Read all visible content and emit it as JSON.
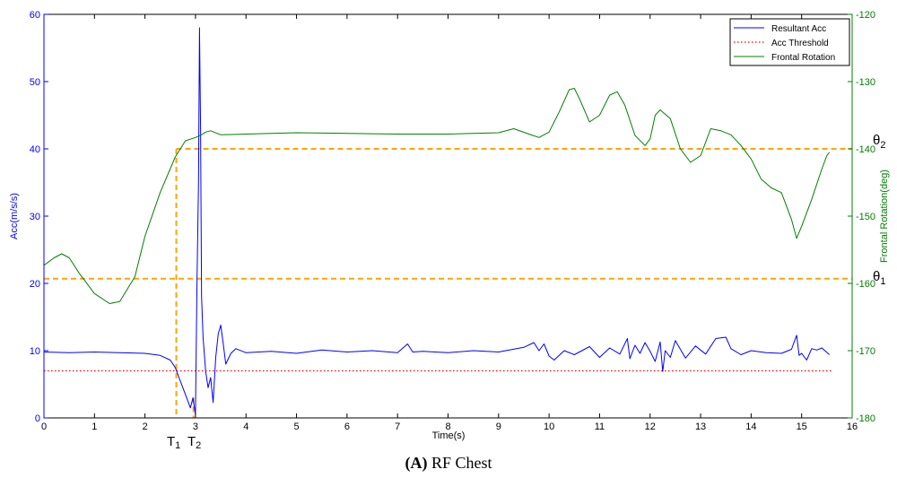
{
  "figure": {
    "caption_bold": "(A)",
    "caption_text": " RF Chest"
  },
  "chart_data": {
    "type": "line",
    "xlabel": "Time(s)",
    "ylabel_left": "Acc(m/s/s)",
    "ylabel_right": "Frontal Rotation(deg)",
    "xlim": [
      0,
      16
    ],
    "ylim_left": [
      0,
      60
    ],
    "ylim_right": [
      -180,
      -120
    ],
    "xticks": [
      0,
      1,
      2,
      3,
      4,
      5,
      6,
      7,
      8,
      9,
      10,
      11,
      12,
      13,
      14,
      15,
      16
    ],
    "yticks_left": [
      0,
      10,
      20,
      30,
      40,
      50,
      60
    ],
    "yticks_right": [
      -180,
      -170,
      -160,
      -150,
      -140,
      -130,
      -120
    ],
    "grid": false,
    "legend_position": "top-right",
    "colors": {
      "acc": "#0000ff",
      "threshold": "#ff0000",
      "rotation": "#008000",
      "markers": "#ffa500",
      "left_axis": "#0000ff",
      "right_axis": "#008000"
    },
    "series": [
      {
        "name": "Resultant Acc",
        "axis": "left",
        "style": "solid",
        "x": [
          0,
          0.5,
          1.0,
          1.5,
          2.0,
          2.3,
          2.5,
          2.6,
          2.7,
          2.8,
          2.9,
          2.95,
          3.0,
          3.03,
          3.06,
          3.08,
          3.1,
          3.12,
          3.15,
          3.2,
          3.25,
          3.3,
          3.35,
          3.4,
          3.45,
          3.5,
          3.55,
          3.6,
          3.7,
          3.8,
          4.0,
          4.5,
          5.0,
          5.5,
          6.0,
          6.5,
          7.0,
          7.2,
          7.3,
          7.5,
          8.0,
          8.5,
          9.0,
          9.5,
          9.7,
          9.8,
          9.9,
          10.0,
          10.1,
          10.3,
          10.5,
          10.8,
          11.0,
          11.2,
          11.4,
          11.55,
          11.6,
          11.7,
          11.8,
          11.9,
          12.0,
          12.1,
          12.2,
          12.25,
          12.3,
          12.4,
          12.5,
          12.7,
          12.9,
          13.1,
          13.3,
          13.5,
          13.6,
          13.8,
          14.0,
          14.3,
          14.6,
          14.8,
          14.9,
          14.95,
          15.0,
          15.1,
          15.2,
          15.3,
          15.4,
          15.55
        ],
        "y": [
          9.8,
          9.7,
          9.8,
          9.7,
          9.6,
          9.3,
          8.6,
          7.5,
          5.5,
          3.5,
          1.5,
          3.0,
          0.5,
          20.0,
          35.0,
          58.0,
          43.0,
          18.0,
          12.0,
          7.0,
          4.5,
          6.0,
          2.3,
          9.0,
          12.5,
          13.8,
          11.0,
          8.0,
          9.6,
          10.3,
          9.7,
          9.9,
          9.6,
          10.1,
          9.8,
          10.0,
          9.7,
          11.0,
          9.8,
          9.9,
          9.7,
          10.0,
          9.8,
          10.5,
          11.2,
          10.0,
          11.0,
          9.2,
          8.6,
          10.0,
          9.4,
          10.6,
          9.0,
          10.4,
          9.5,
          11.8,
          8.8,
          10.8,
          9.6,
          11.2,
          9.9,
          8.4,
          11.3,
          6.9,
          10.0,
          9.0,
          11.5,
          8.9,
          10.7,
          9.5,
          11.8,
          12.0,
          10.3,
          9.4,
          10.0,
          9.7,
          9.6,
          10.2,
          12.3,
          9.3,
          9.6,
          8.6,
          10.3,
          10.1,
          10.4,
          9.4
        ]
      },
      {
        "name": "Acc Threshold",
        "axis": "left",
        "style": "dotted",
        "x": [
          0,
          15.6
        ],
        "y": [
          7,
          7
        ]
      },
      {
        "name": "Frontal Rotation",
        "axis": "right",
        "style": "solid",
        "x": [
          0,
          0.2,
          0.35,
          0.5,
          0.7,
          1.0,
          1.3,
          1.5,
          1.8,
          2.0,
          2.3,
          2.6,
          2.8,
          3.0,
          3.1,
          3.2,
          3.3,
          3.5,
          4.0,
          5.0,
          6.0,
          7.0,
          8.0,
          9.0,
          9.3,
          9.6,
          9.8,
          10.0,
          10.2,
          10.4,
          10.5,
          10.6,
          10.8,
          11.0,
          11.2,
          11.35,
          11.5,
          11.7,
          11.9,
          12.0,
          12.1,
          12.2,
          12.4,
          12.6,
          12.8,
          13.0,
          13.2,
          13.4,
          13.6,
          13.8,
          14.0,
          14.2,
          14.4,
          14.6,
          14.8,
          14.9,
          15.0,
          15.2,
          15.4,
          15.5,
          15.55
        ],
        "y": [
          -157.3,
          -156.2,
          -155.6,
          -156.2,
          -158.5,
          -161.5,
          -163.0,
          -162.7,
          -159.0,
          -153.0,
          -146.5,
          -141.2,
          -138.8,
          -138.3,
          -138.0,
          -137.5,
          -137.3,
          -137.9,
          -137.8,
          -137.6,
          -137.7,
          -137.8,
          -137.8,
          -137.6,
          -137.0,
          -137.8,
          -138.3,
          -137.5,
          -134.5,
          -131.2,
          -131.0,
          -132.5,
          -136.0,
          -135.0,
          -132.0,
          -131.5,
          -133.5,
          -138.0,
          -139.5,
          -138.5,
          -135.0,
          -134.2,
          -135.5,
          -140.0,
          -142.0,
          -141.0,
          -137.0,
          -137.3,
          -137.9,
          -139.5,
          -141.5,
          -144.5,
          -145.8,
          -146.5,
          -150.5,
          -153.3,
          -151.5,
          -147.5,
          -143.0,
          -141.0,
          -140.5
        ]
      }
    ],
    "markers": {
      "theta1_label": "θ",
      "theta1_sub": "1",
      "theta2_label": "θ",
      "theta2_sub": "2",
      "t1_label": "T",
      "t1_sub": "1",
      "t2_label": "T",
      "t2_sub": "2",
      "theta1_value": -159.3,
      "theta2_value": -140.0,
      "t1_x": 2.62,
      "t2_x": 2.96
    }
  }
}
